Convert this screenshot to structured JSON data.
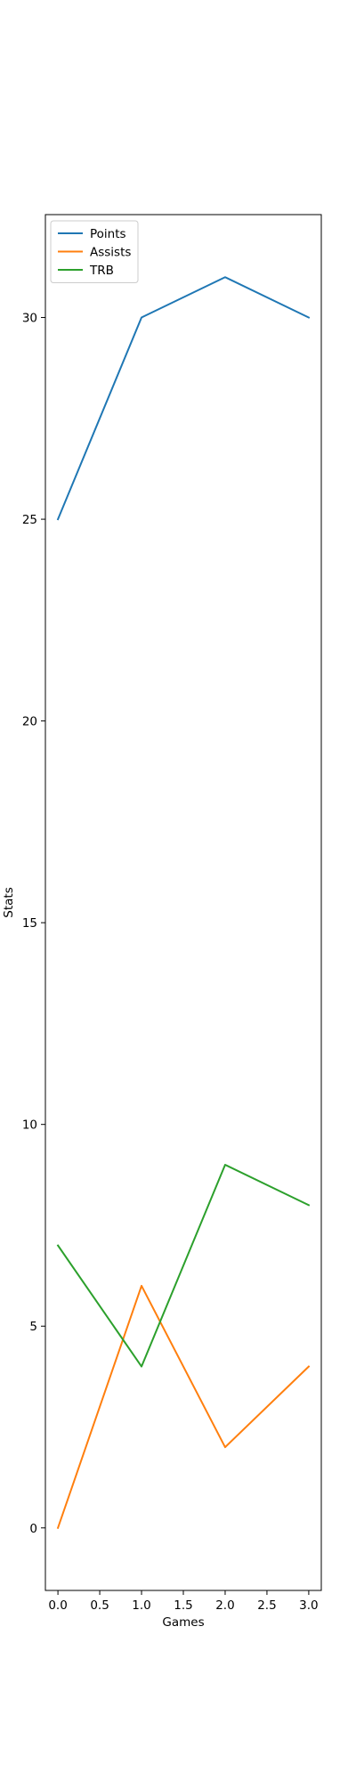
{
  "chart_data": {
    "type": "line",
    "title": "",
    "xlabel": "Games",
    "ylabel": "Stats",
    "x": [
      0,
      1,
      2,
      3
    ],
    "series": [
      {
        "name": "Points",
        "values": [
          25,
          30,
          31,
          30
        ],
        "color": "#1f77b4"
      },
      {
        "name": "Assists",
        "values": [
          0,
          6,
          2,
          4
        ],
        "color": "#ff7f0e"
      },
      {
        "name": "TRB",
        "values": [
          7,
          4,
          9,
          8
        ],
        "color": "#2ca02c"
      }
    ],
    "xlim": [
      -0.15,
      3.15
    ],
    "ylim": [
      -1.55,
      32.55
    ],
    "xticks": [
      0.0,
      0.5,
      1.0,
      1.5,
      2.0,
      2.5,
      3.0
    ],
    "xtick_labels": [
      "0.0",
      "0.5",
      "1.0",
      "1.5",
      "2.0",
      "2.5",
      "3.0"
    ],
    "yticks": [
      0,
      5,
      10,
      15,
      20,
      25,
      30
    ],
    "ytick_labels": [
      "0",
      "5",
      "10",
      "15",
      "20",
      "25",
      "30"
    ],
    "grid": false,
    "legend_position": "top-left"
  }
}
